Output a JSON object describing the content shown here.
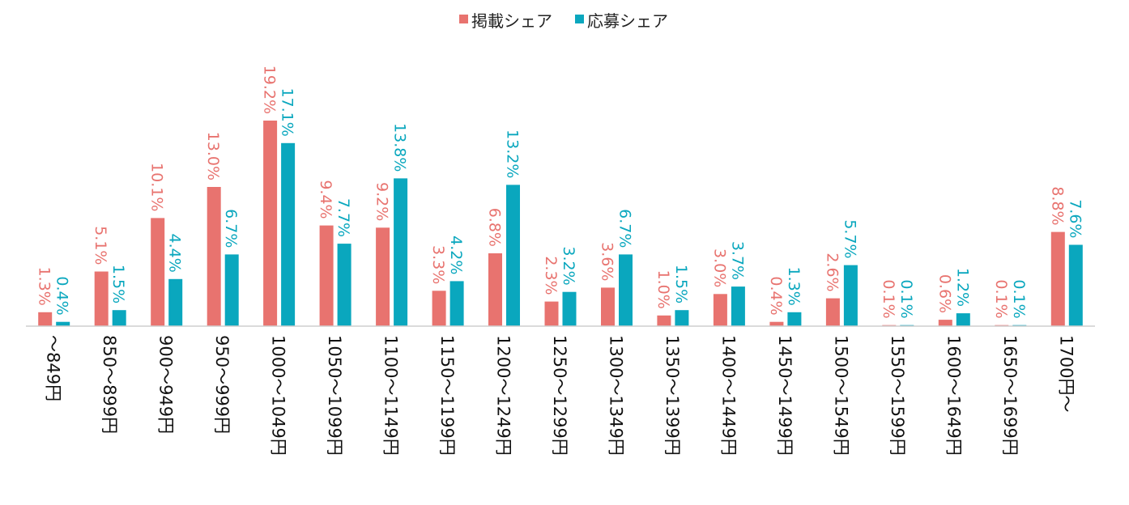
{
  "chart_data": {
    "type": "bar",
    "title": "",
    "xlabel": "",
    "ylabel": "",
    "ylim": [
      0,
      20
    ],
    "grid": false,
    "legend_position": "top",
    "categories": [
      "～849円",
      "850～899円",
      "900～949円",
      "950～999円",
      "1000～1049円",
      "1050～1099円",
      "1100～1149円",
      "1150～1199円",
      "1200～1249円",
      "1250～1299円",
      "1300～1349円",
      "1350～1399円",
      "1400～1449円",
      "1450～1499円",
      "1500～1549円",
      "1550～1599円",
      "1600～1649円",
      "1650～1699円",
      "1700円～"
    ],
    "series": [
      {
        "name": "掲載シェア",
        "color": "#E8736F",
        "values": [
          1.3,
          5.1,
          10.1,
          13.0,
          19.2,
          9.4,
          9.2,
          3.3,
          6.8,
          2.3,
          3.6,
          1.0,
          3.0,
          0.4,
          2.6,
          0.1,
          0.6,
          0.1,
          8.8
        ],
        "labels": [
          "1.3%",
          "5.1%",
          "10.1%",
          "13.0%",
          "19.2%",
          "9.4%",
          "9.2%",
          "3.3%",
          "6.8%",
          "2.3%",
          "3.6%",
          "1.0%",
          "3.0%",
          "0.4%",
          "2.6%",
          "0.1%",
          "0.6%",
          "0.1%",
          "8.8%"
        ]
      },
      {
        "name": "応募シェア",
        "color": "#0AA7BE",
        "values": [
          0.4,
          1.5,
          4.4,
          6.7,
          17.1,
          7.7,
          13.8,
          4.2,
          13.2,
          3.2,
          6.7,
          1.5,
          3.7,
          1.3,
          5.7,
          0.1,
          1.2,
          0.1,
          7.6
        ],
        "labels": [
          "0.4%",
          "1.5%",
          "4.4%",
          "6.7%",
          "17.1%",
          "7.7%",
          "13.8%",
          "4.2%",
          "13.2%",
          "3.2%",
          "6.7%",
          "1.5%",
          "3.7%",
          "1.3%",
          "5.7%",
          "0.1%",
          "1.2%",
          "0.1%",
          "7.6%"
        ]
      }
    ]
  },
  "colors": {
    "axis_line": "#CFCFCF",
    "series_1": "#E8736F",
    "series_2": "#0AA7BE"
  }
}
